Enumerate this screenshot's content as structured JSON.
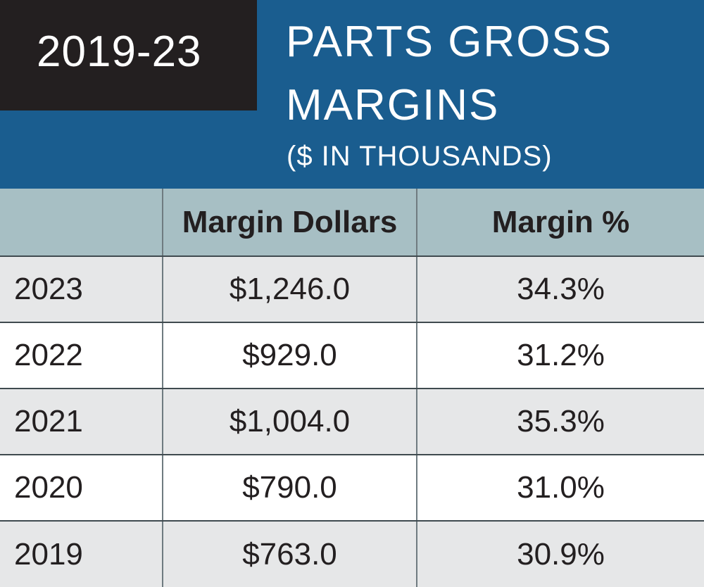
{
  "header": {
    "badge": "2019-23",
    "title_line1": "PARTS GROSS",
    "title_line2": "MARGINS",
    "subtitle": "($ IN THOUSANDS)"
  },
  "colors": {
    "header_blue": "#1a5d8f",
    "badge_black": "#231f20",
    "column_header_gray_blue": "#a7bfc4",
    "row_shade": "#e6e7e8"
  },
  "chart_data": {
    "type": "table",
    "title": "PARTS GROSS MARGINS",
    "subtitle": "($ IN THOUSANDS)",
    "columns": [
      "",
      "Margin Dollars",
      "Margin %"
    ],
    "rows": [
      [
        "2023",
        "$1,246.0",
        "34.3%"
      ],
      [
        "2022",
        "$929.0",
        "31.2%"
      ],
      [
        "2021",
        "$1,004.0",
        "35.3%"
      ],
      [
        "2020",
        "$790.0",
        "31.0%"
      ],
      [
        "2019",
        "$763.0",
        "30.9%"
      ]
    ]
  }
}
